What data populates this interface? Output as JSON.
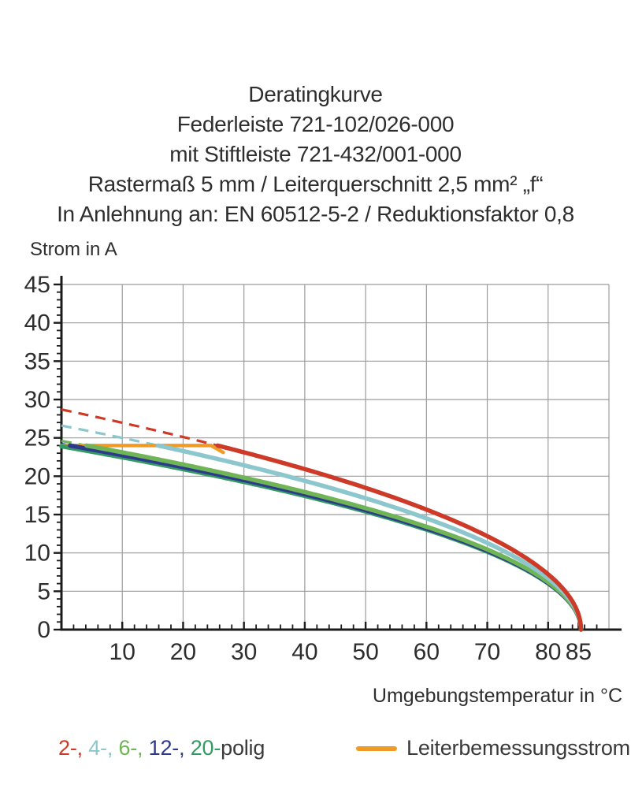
{
  "title": {
    "lines": [
      "Deratingkurve",
      "Federleiste 721-102/026-000",
      "mit Stiftleiste 721-432/001-000",
      "Rastermaß 5 mm / Leiterquerschnitt 2,5 mm² „f“",
      "In Anlehnung an: EN 60512-5-2 / Reduktionsfaktor 0,8"
    ]
  },
  "chart_data": {
    "type": "line",
    "title": "Deratingkurve Federleiste 721-102/026-000 mit Stiftleiste 721-432/001-000",
    "xlabel": "Umgebungstemperatur in °C",
    "ylabel": "Strom in A",
    "xlim": [
      0,
      90
    ],
    "ylim": [
      0,
      45
    ],
    "grid": true,
    "x_tick_labels": [
      10,
      20,
      30,
      40,
      50,
      60,
      70,
      80,
      85
    ],
    "x_minor_step": 2,
    "y_tick_labels": [
      0,
      5,
      10,
      15,
      20,
      25,
      30,
      35,
      40,
      45
    ],
    "y_minor_step": 1,
    "x_gridlines": [
      10,
      20,
      30,
      40,
      50,
      60,
      70,
      80,
      90
    ],
    "y_gridlines": [
      5,
      10,
      15,
      20,
      25,
      30,
      35,
      40,
      45
    ],
    "rated_line": {
      "label": "Leiterbemessungsstrom",
      "value_A": 24,
      "color": "#f09b26",
      "points": [
        [
          0,
          24
        ],
        [
          24.6,
          24
        ],
        [
          26.6,
          23.1
        ]
      ]
    },
    "dashed_above_A": 24,
    "samples_degC": [
      0,
      10,
      20,
      30,
      40,
      50,
      60,
      70,
      80,
      85
    ],
    "series": [
      {
        "name": "2-polig",
        "color": "#cd3a28",
        "i0_A": 28.7,
        "t_end_degC": 85.4,
        "values_A": [
          28.7,
          27.0,
          25.1,
          23.1,
          20.9,
          18.5,
          15.7,
          12.2,
          7.2,
          2.0
        ]
      },
      {
        "name": "4-polig",
        "color": "#8cc7ce",
        "i0_A": 26.6,
        "t_end_degC": 85.4,
        "values_A": [
          26.6,
          25.0,
          23.3,
          21.4,
          19.4,
          17.1,
          14.5,
          11.3,
          6.7,
          1.8
        ]
      },
      {
        "name": "6-polig",
        "color": "#6fb457",
        "i0_A": 24.6,
        "t_end_degC": 85.4,
        "values_A": [
          24.6,
          23.1,
          21.5,
          19.8,
          17.9,
          15.8,
          13.4,
          10.5,
          6.2,
          1.7
        ]
      },
      {
        "name": "12-polig",
        "color": "#2d3a8c",
        "i0_A": 24.2,
        "t_end_degC": 85.4,
        "values_A": [
          24.2,
          22.7,
          21.2,
          19.5,
          17.7,
          15.6,
          13.2,
          10.3,
          6.1,
          1.6
        ]
      },
      {
        "name": "20-polig",
        "color": "#349a63",
        "i0_A": 23.9,
        "t_end_degC": 85.4,
        "values_A": [
          23.9,
          22.5,
          20.9,
          19.2,
          17.4,
          15.4,
          13.0,
          10.2,
          6.0,
          1.6
        ]
      }
    ],
    "colors": {
      "grid": "#9c9c9c",
      "axis": "#1c1c1c",
      "text": "#2d2d2d"
    },
    "legend_position": "bottom"
  },
  "legend": {
    "poles_parts": [
      {
        "text": "2-, ",
        "color": "#cd3a28"
      },
      {
        "text": "4-, ",
        "color": "#8cc7ce"
      },
      {
        "text": "6-, ",
        "color": "#6fb457"
      },
      {
        "text": "12-, ",
        "color": "#2d3a8c"
      },
      {
        "text": "20-",
        "color": "#349a63"
      },
      {
        "text": "polig",
        "color": "#3a3a3a"
      }
    ]
  }
}
